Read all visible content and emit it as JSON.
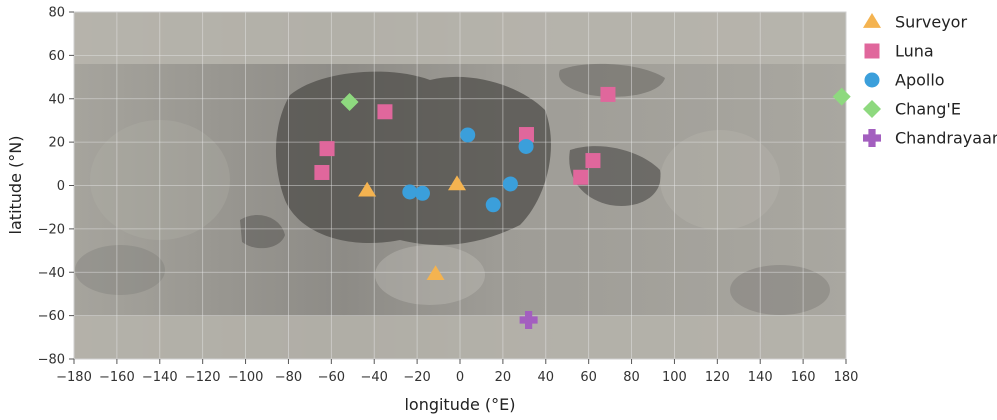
{
  "chart_data": {
    "type": "scatter",
    "xlabel": "longitude (°E)",
    "ylabel": "latitude (°N)",
    "xlim": [
      -180,
      180
    ],
    "ylim": [
      -80,
      80
    ],
    "xticks": [
      -180,
      -160,
      -140,
      -120,
      -100,
      -80,
      -60,
      -40,
      -20,
      0,
      20,
      40,
      60,
      80,
      100,
      120,
      140,
      160,
      180
    ],
    "yticks": [
      -80,
      -60,
      -40,
      -20,
      0,
      20,
      40,
      60,
      80
    ],
    "grid": true,
    "background": "lunar surface map",
    "legend_position": "outside-right",
    "series": [
      {
        "name": "Surveyor",
        "marker": "triangle",
        "color": "#f4b350",
        "points": [
          [
            -43.3,
            -2.4
          ],
          [
            -1.4,
            0.5
          ],
          [
            -11.4,
            -40.9
          ]
        ]
      },
      {
        "name": "Luna",
        "marker": "square",
        "color": "#e0679c",
        "points": [
          [
            -35,
            34
          ],
          [
            -62,
            17
          ],
          [
            -64.4,
            6
          ],
          [
            31,
            23.5
          ],
          [
            69,
            42
          ],
          [
            56.3,
            3.8
          ],
          [
            62,
            11.5
          ]
        ]
      },
      {
        "name": "Apollo",
        "marker": "circle",
        "color": "#3b9fdb",
        "points": [
          [
            3.6,
            23.3
          ],
          [
            30.8,
            18
          ],
          [
            -23.4,
            -3
          ],
          [
            -17.5,
            -3.6
          ],
          [
            23.5,
            0.7
          ],
          [
            15.5,
            -8.9
          ]
        ]
      },
      {
        "name": "Chang'E",
        "marker": "diamond",
        "color": "#8ed97f",
        "points": [
          [
            -51.5,
            38.5
          ],
          [
            178,
            41
          ]
        ]
      },
      {
        "name": "Chandrayaan",
        "marker": "plus",
        "color": "#a35fbf",
        "points": [
          [
            32,
            -62
          ]
        ]
      }
    ]
  }
}
